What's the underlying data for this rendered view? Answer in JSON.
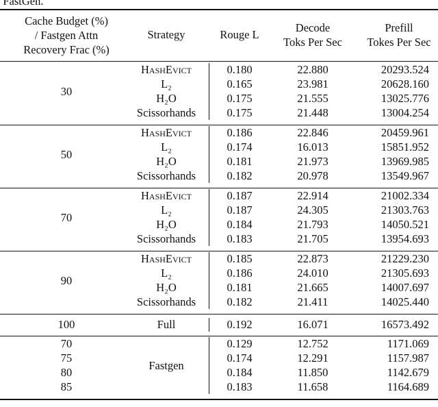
{
  "caption_fragment": "o FastGen.",
  "header": {
    "budget": [
      "Cache Budget (%)",
      "/ Fastgen Attn",
      "Recovery Frac (%)"
    ],
    "strategy": "Strategy",
    "rouge": "Rouge L",
    "decode": [
      "Decode",
      "Toks Per Sec"
    ],
    "prefill": [
      "Prefill",
      "Tokes Per Sec"
    ]
  },
  "groups": [
    {
      "budget": "30",
      "rows": [
        {
          "strategy": "HashEvict",
          "rouge": "0.180",
          "decode": "22.880",
          "prefill": "20293.524"
        },
        {
          "strategy": "L₂",
          "rouge": "0.165",
          "decode": "23.981",
          "prefill": "20628.160"
        },
        {
          "strategy": "H₂O",
          "rouge": "0.175",
          "decode": "21.555",
          "prefill": "13025.776"
        },
        {
          "strategy": "Scissorhands",
          "rouge": "0.175",
          "decode": "21.448",
          "prefill": "13004.254"
        }
      ]
    },
    {
      "budget": "50",
      "rows": [
        {
          "strategy": "HashEvict",
          "rouge": "0.186",
          "decode": "22.846",
          "prefill": "20459.961"
        },
        {
          "strategy": "L₂",
          "rouge": "0.174",
          "decode": "16.013",
          "prefill": "15851.952"
        },
        {
          "strategy": "H₂O",
          "rouge": "0.181",
          "decode": "21.973",
          "prefill": "13969.985"
        },
        {
          "strategy": "Scissorhands",
          "rouge": "0.182",
          "decode": "20.978",
          "prefill": "13549.967"
        }
      ]
    },
    {
      "budget": "70",
      "rows": [
        {
          "strategy": "HashEvict",
          "rouge": "0.187",
          "decode": "22.914",
          "prefill": "21002.334"
        },
        {
          "strategy": "L₂",
          "rouge": "0.187",
          "decode": "24.305",
          "prefill": "21303.763"
        },
        {
          "strategy": "H₂O",
          "rouge": "0.184",
          "decode": "21.793",
          "prefill": "14050.521"
        },
        {
          "strategy": "Scissorhands",
          "rouge": "0.183",
          "decode": "21.705",
          "prefill": "13954.693"
        }
      ]
    },
    {
      "budget": "90",
      "rows": [
        {
          "strategy": "HashEvict",
          "rouge": "0.185",
          "decode": "22.873",
          "prefill": "21229.230"
        },
        {
          "strategy": "L₂",
          "rouge": "0.186",
          "decode": "24.010",
          "prefill": "21305.693"
        },
        {
          "strategy": "H₂O",
          "rouge": "0.181",
          "decode": "21.665",
          "prefill": "14007.697"
        },
        {
          "strategy": "Scissorhands",
          "rouge": "0.182",
          "decode": "21.411",
          "prefill": "14025.440"
        }
      ]
    },
    {
      "budget": "100",
      "rows": [
        {
          "strategy": "Full",
          "rouge": "0.192",
          "decode": "16.071",
          "prefill": "16573.492"
        }
      ]
    },
    {
      "strategy": "Fastgen",
      "rows": [
        {
          "budget": "70",
          "rouge": "0.129",
          "decode": "12.752",
          "prefill": "1171.069"
        },
        {
          "budget": "75",
          "rouge": "0.174",
          "decode": "12.291",
          "prefill": "1157.987"
        },
        {
          "budget": "80",
          "rouge": "0.184",
          "decode": "11.850",
          "prefill": "1142.679"
        },
        {
          "budget": "85",
          "rouge": "0.183",
          "decode": "11.658",
          "prefill": "1164.689"
        }
      ]
    }
  ]
}
